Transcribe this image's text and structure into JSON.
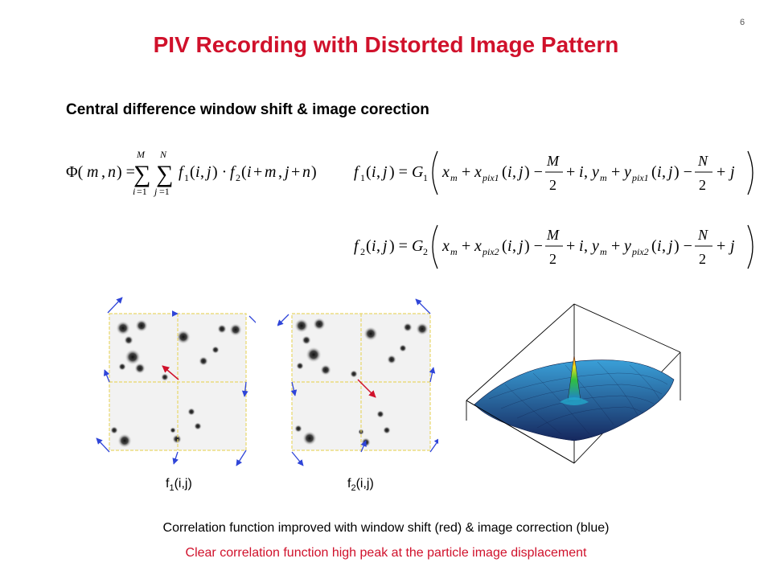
{
  "slide": {
    "page_number": "6",
    "title": "PIV Recording with Distorted Image Pattern",
    "subtitle": "Central difference window shift & image corection",
    "labels": {
      "f1_base": "f",
      "f1_sub": "1",
      "f1_args": "(i,j)",
      "f2_base": "f",
      "f2_sub": "2",
      "f2_args": "(i,j)"
    },
    "note_black": "Correlation function improved with window shift (red) & image correction (blue)",
    "note_red": "Clear correlation function high peak at the particle image displacement",
    "colors": {
      "title_red": "#d0112b",
      "arrow_blue": "#2f45d8",
      "arrow_red": "#d0112b",
      "grid_yellow": "#e9d76a"
    }
  }
}
